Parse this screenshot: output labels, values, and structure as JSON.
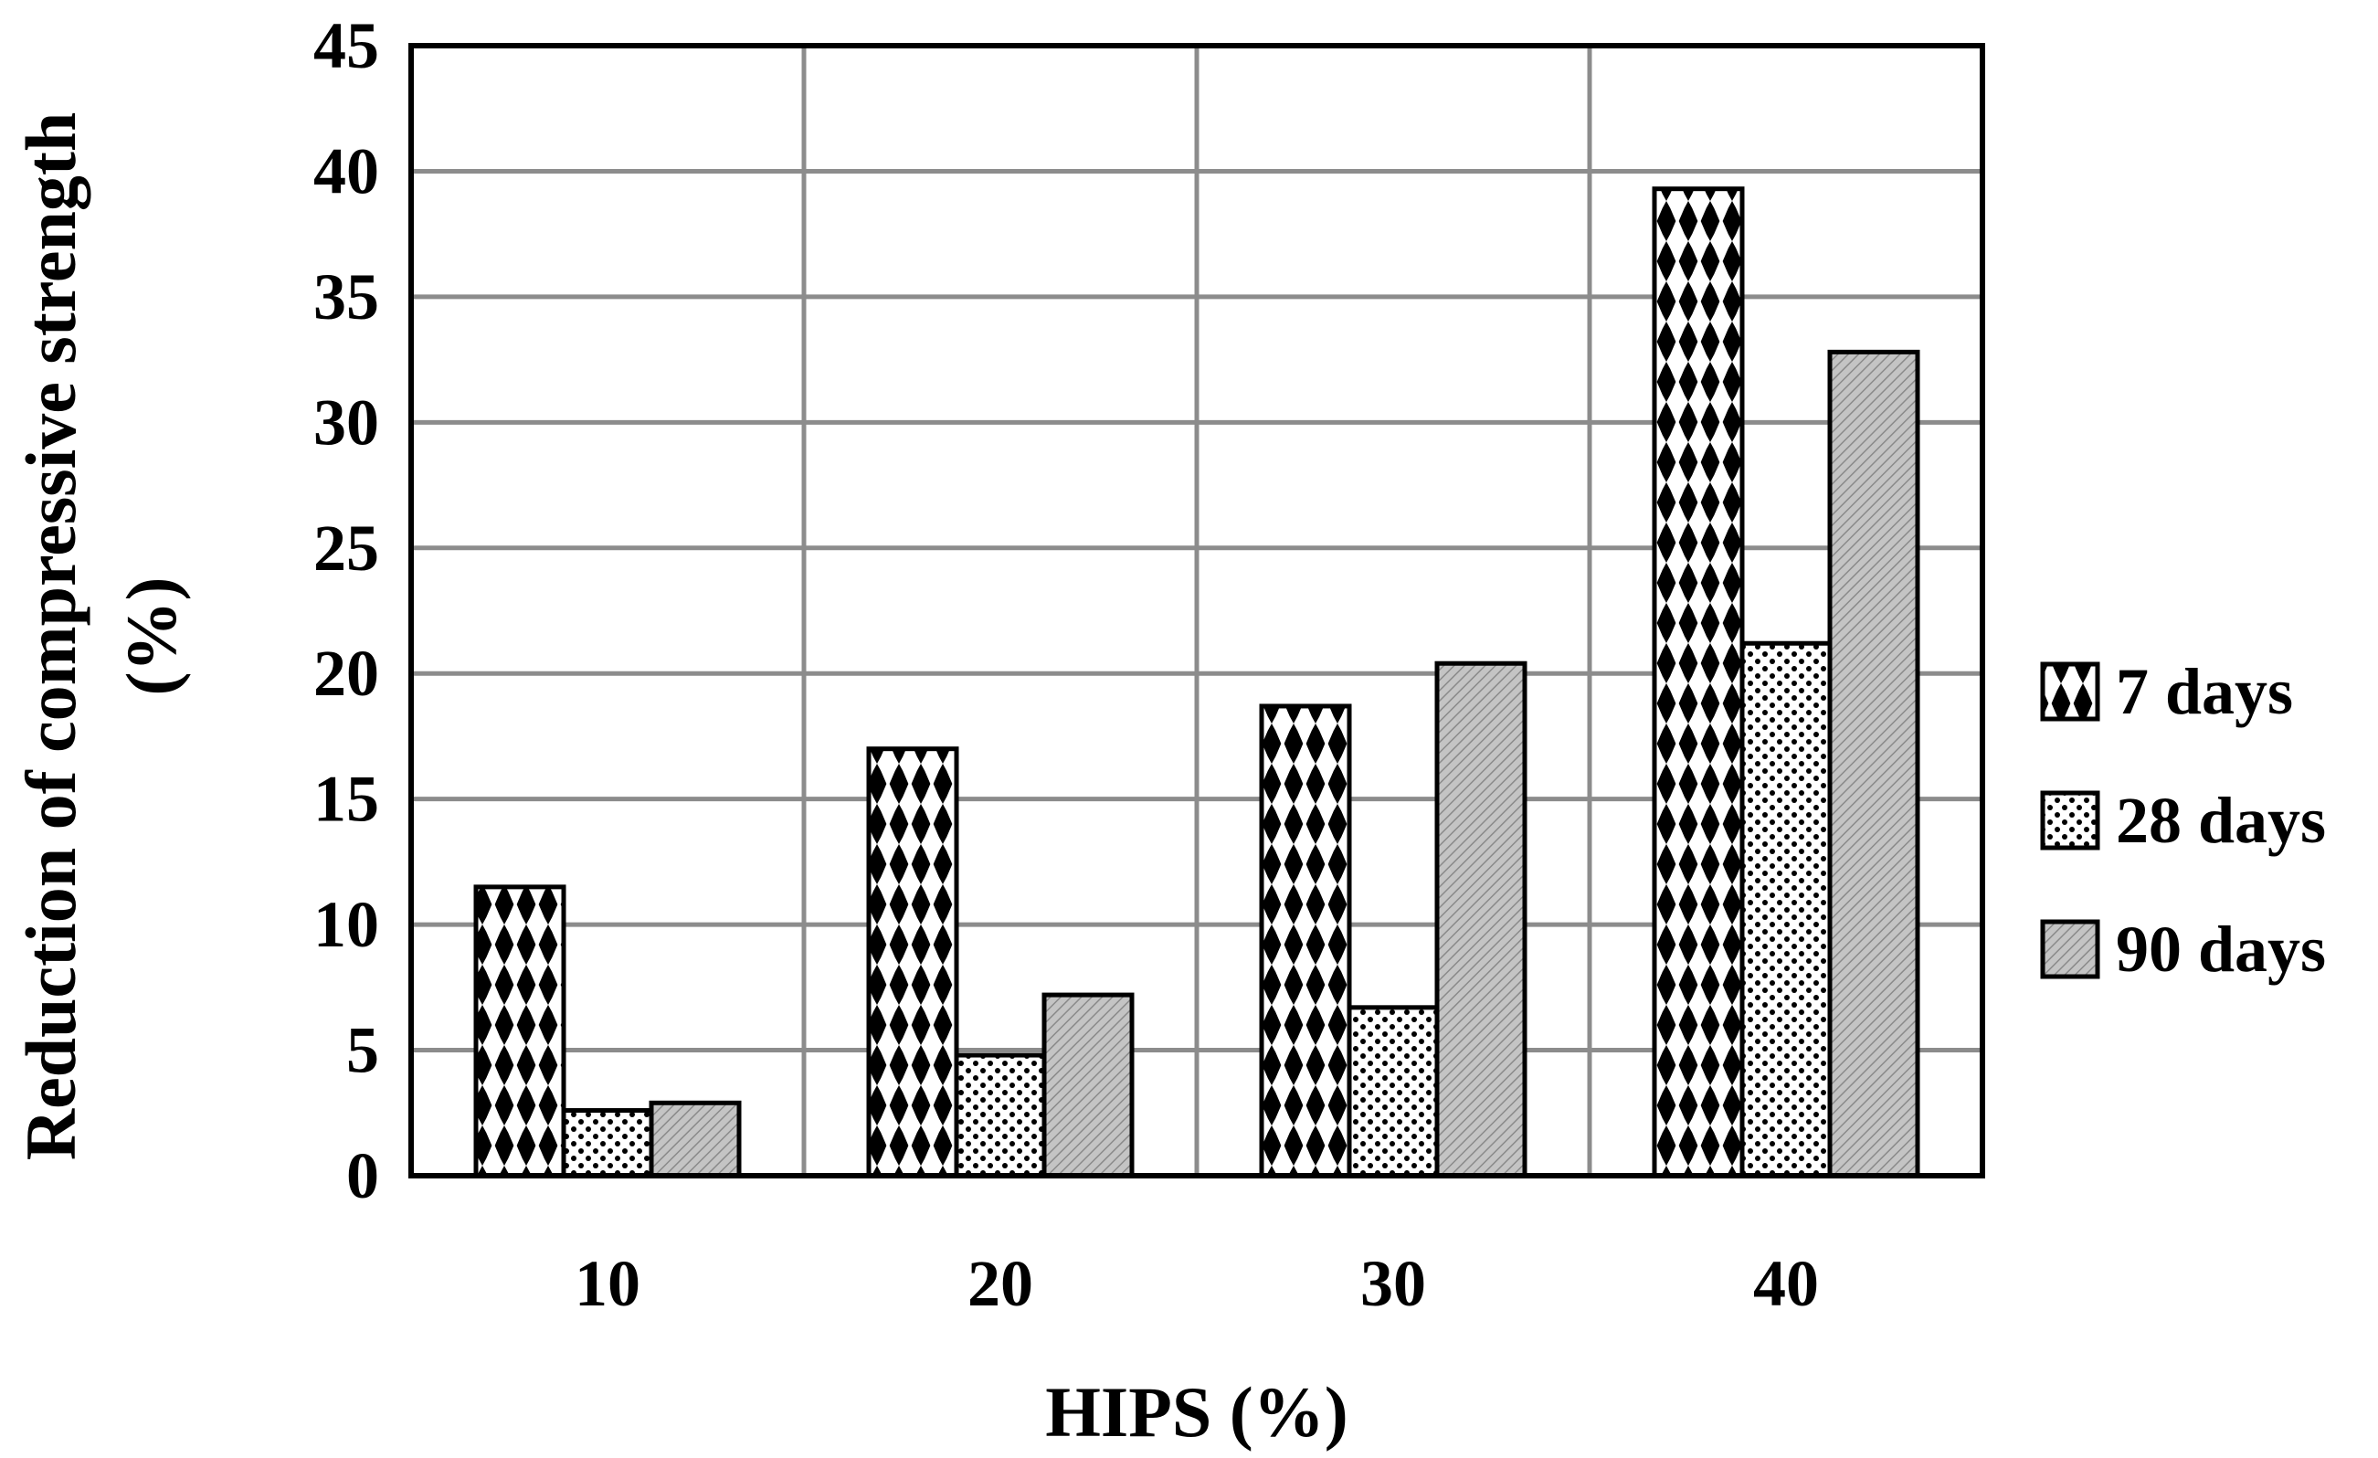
{
  "chart_data": {
    "type": "bar",
    "categories": [
      "10",
      "20",
      "30",
      "40"
    ],
    "series": [
      {
        "name": "7 days",
        "values": [
          11.5,
          17.0,
          18.7,
          39.3
        ]
      },
      {
        "name": "28 days",
        "values": [
          2.6,
          4.8,
          6.7,
          21.2
        ]
      },
      {
        "name": "90 days",
        "values": [
          2.9,
          7.2,
          20.4,
          32.8
        ]
      }
    ],
    "xlabel": "HIPS (%)",
    "ylabel": "Reduction of compressive strength (%)",
    "ylabel_lines": [
      "Reduction of compressive strength",
      "(%)"
    ],
    "ylim": [
      0,
      45
    ],
    "yticks": [
      "0",
      "5",
      "10",
      "15",
      "20",
      "25",
      "30",
      "35",
      "40",
      "45"
    ],
    "grid": true,
    "legend_position": "right",
    "colors": {
      "grid": "#8c8c8c",
      "frame": "#000000",
      "series_7_days": "#000000",
      "series_28_days": "#000000",
      "series_90_days": "#bdbdbd"
    }
  }
}
